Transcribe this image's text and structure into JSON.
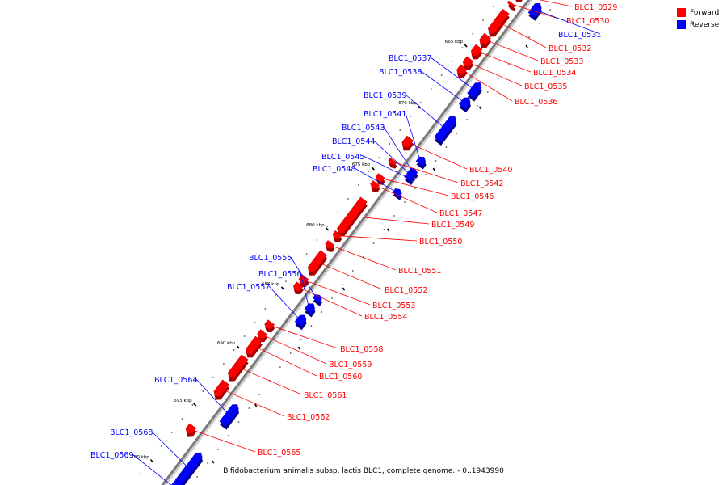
{
  "legend": {
    "forward_label": "Forward",
    "forward_color": "#ff0000",
    "reverse_label": "Reverse",
    "reverse_color": "#0000ff"
  },
  "caption": "Bifidobacterium animalis subsp. lactis BLC1, complete genome. - 0..1943990",
  "scale_labels": [
    "665 kbp",
    "670 kbp",
    "675 kbp",
    "680 kbp",
    "685 kbp",
    "690 kbp",
    "695 kbp",
    "700 kbp"
  ],
  "genes": [
    {
      "label": "BLC1_0529",
      "strand": "forward"
    },
    {
      "label": "BLC1_0530",
      "strand": "forward"
    },
    {
      "label": "BLC1_0531",
      "strand": "reverse"
    },
    {
      "label": "BLC1_0532",
      "strand": "forward"
    },
    {
      "label": "BLC1_0533",
      "strand": "forward"
    },
    {
      "label": "BLC1_0534",
      "strand": "forward"
    },
    {
      "label": "BLC1_0535",
      "strand": "forward"
    },
    {
      "label": "BLC1_0536",
      "strand": "forward"
    },
    {
      "label": "BLC1_0537",
      "strand": "reverse"
    },
    {
      "label": "BLC1_0538",
      "strand": "reverse"
    },
    {
      "label": "BLC1_0539",
      "strand": "reverse"
    },
    {
      "label": "BLC1_0540",
      "strand": "forward"
    },
    {
      "label": "BLC1_0541",
      "strand": "reverse"
    },
    {
      "label": "BLC1_0542",
      "strand": "forward"
    },
    {
      "label": "BLC1_0543",
      "strand": "reverse"
    },
    {
      "label": "BLC1_0544",
      "strand": "reverse"
    },
    {
      "label": "BLC1_0545",
      "strand": "reverse"
    },
    {
      "label": "BLC1_0546",
      "strand": "forward"
    },
    {
      "label": "BLC1_0547",
      "strand": "forward"
    },
    {
      "label": "BLC1_0548",
      "strand": "reverse"
    },
    {
      "label": "BLC1_0549",
      "strand": "forward"
    },
    {
      "label": "BLC1_0550",
      "strand": "forward"
    },
    {
      "label": "BLC1_0551",
      "strand": "forward"
    },
    {
      "label": "BLC1_0552",
      "strand": "forward"
    },
    {
      "label": "BLC1_0553",
      "strand": "forward"
    },
    {
      "label": "BLC1_0554",
      "strand": "forward"
    },
    {
      "label": "BLC1_0555",
      "strand": "reverse"
    },
    {
      "label": "BLC1_0556",
      "strand": "reverse"
    },
    {
      "label": "BLC1_0557",
      "strand": "reverse"
    },
    {
      "label": "BLC1_0558",
      "strand": "forward"
    },
    {
      "label": "BLC1_0559",
      "strand": "forward"
    },
    {
      "label": "BLC1_0560",
      "strand": "forward"
    },
    {
      "label": "BLC1_0561",
      "strand": "forward"
    },
    {
      "label": "BLC1_0562",
      "strand": "forward"
    },
    {
      "label": "BLC1_0564",
      "strand": "reverse"
    },
    {
      "label": "BLC1_0565",
      "strand": "forward"
    },
    {
      "label": "BLC1_0568",
      "strand": "reverse"
    },
    {
      "label": "BLC1_0569",
      "strand": "reverse"
    }
  ]
}
